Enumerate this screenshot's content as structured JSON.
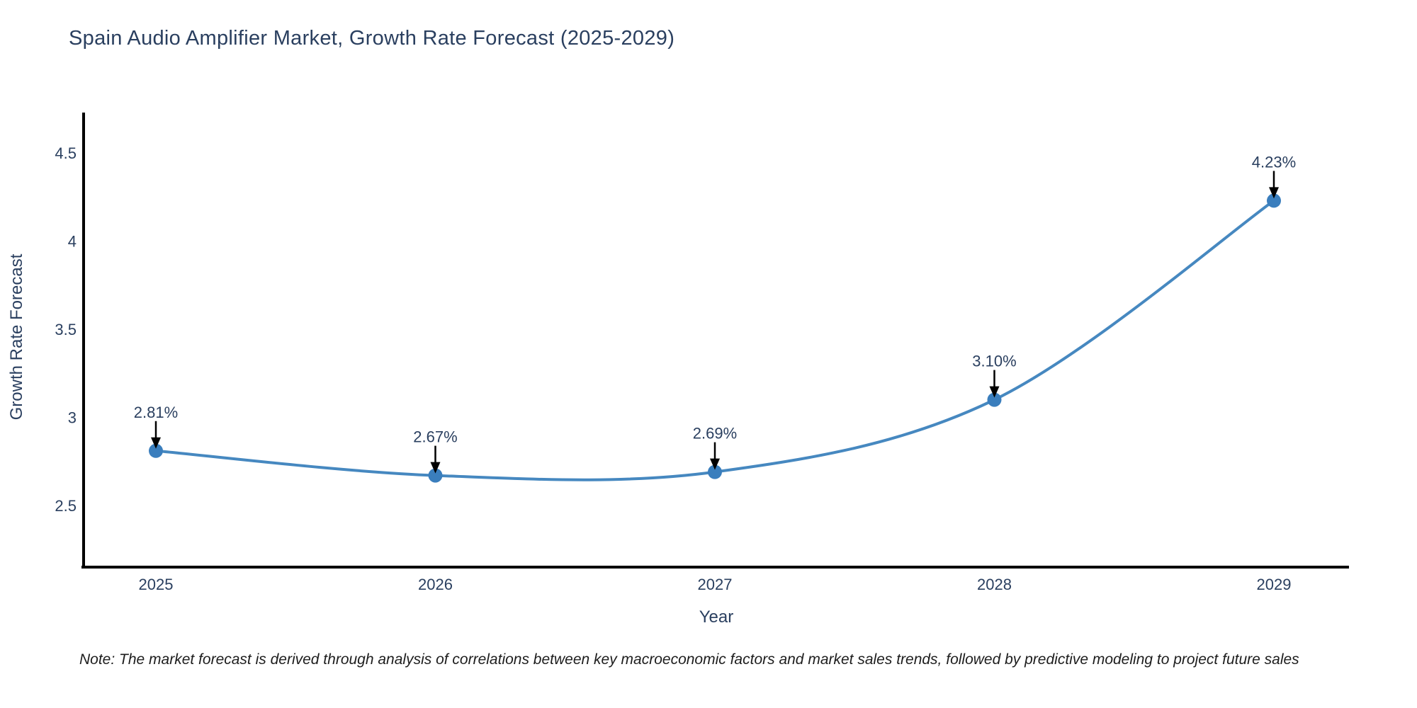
{
  "note": "Note: The market forecast is derived through analysis of correlations between key macroeconomic factors and market sales trends, followed by predictive modeling to project future sales",
  "chart_data": {
    "type": "line",
    "title": "Spain Audio Amplifier Market, Growth Rate Forecast (2025-2029)",
    "xlabel": "Year",
    "ylabel": "Growth Rate Forecast",
    "categories": [
      "2025",
      "2026",
      "2027",
      "2028",
      "2029"
    ],
    "values": [
      2.81,
      2.67,
      2.69,
      3.1,
      4.23
    ],
    "point_labels": [
      "2.81%",
      "2.67%",
      "2.69%",
      "3.10%",
      "4.23%"
    ],
    "yticks": [
      2.5,
      3,
      3.5,
      4,
      4.5
    ],
    "ylim": [
      2.15,
      4.73
    ],
    "line_shape": "spline",
    "grid": false,
    "legend": "none",
    "colors": {
      "line": "#4688c0",
      "marker": "#3a7ebd",
      "axis": "#000000",
      "tick_text": "#2a3f5f",
      "annotation_text": "#2a3f5f",
      "annotation_arrow": "#000000",
      "title_text": "#2a3f5f",
      "background": "#ffffff"
    }
  }
}
